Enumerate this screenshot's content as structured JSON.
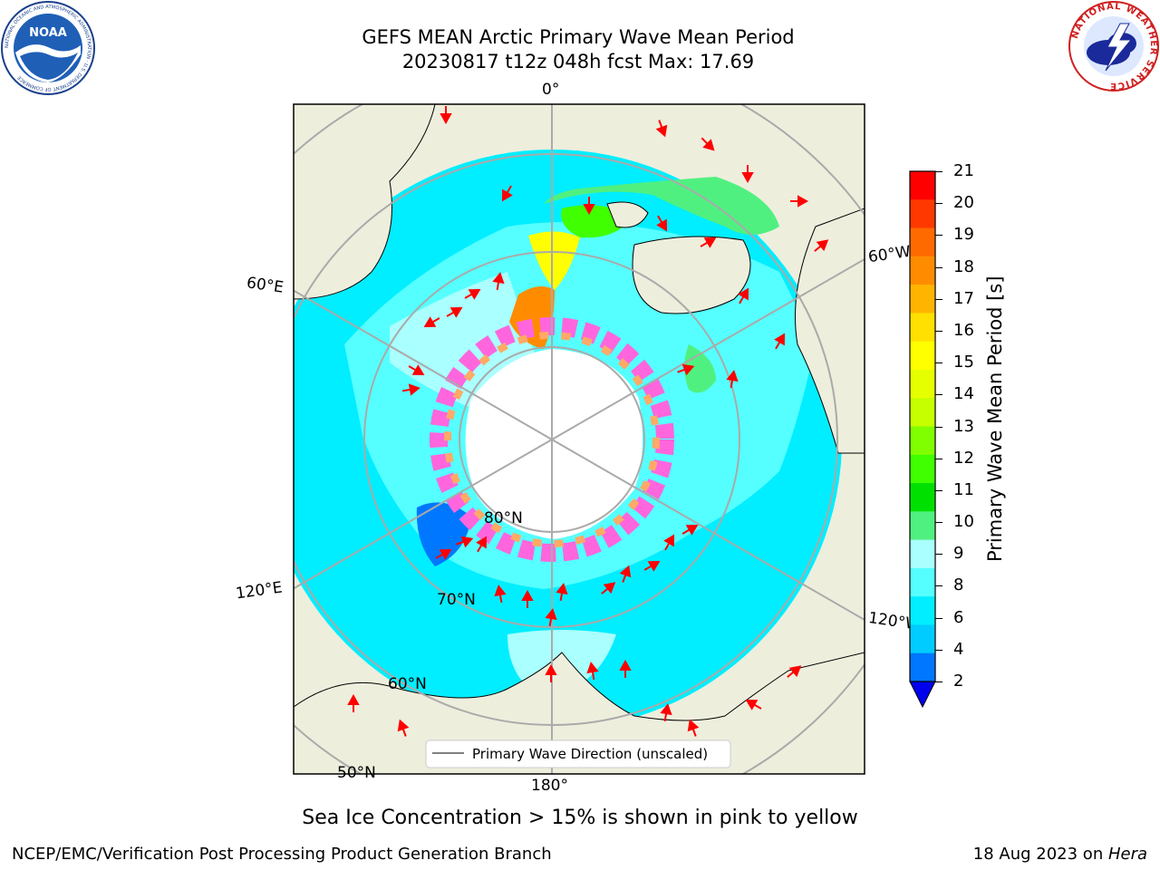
{
  "header": {
    "title_line1": "GEFS MEAN Arctic Primary Wave Mean Period",
    "title_line2": "20230817 t12z 048h fcst   Max: 17.69"
  },
  "map": {
    "lat_labels": [
      "80°N",
      "70°N",
      "60°N",
      "50°N"
    ],
    "lon_labels": [
      "0°",
      "60°W",
      "120°W",
      "180°",
      "120°E",
      "60°E"
    ],
    "legend_label": "Primary Wave Direction (unscaled)",
    "colors": {
      "land": "#eeeedd",
      "ice": "#ffffff",
      "grid": "#aaaaaa",
      "arrow": "#ff0000"
    }
  },
  "colorbar": {
    "title": "Primary Wave Mean Period [s]",
    "ticks": [
      "21",
      "20",
      "19",
      "18",
      "17",
      "16",
      "15",
      "14",
      "13",
      "12",
      "11",
      "10",
      "9",
      "8",
      "6",
      "4",
      "2"
    ],
    "colors": [
      "#ff0000",
      "#ff3800",
      "#ff6a00",
      "#ff8c00",
      "#ffb400",
      "#ffe000",
      "#ffff00",
      "#e6ff00",
      "#c6ff00",
      "#80ff00",
      "#40ff00",
      "#00e000",
      "#50f080",
      "#aaffff",
      "#55ffff",
      "#00eeff",
      "#00ccff",
      "#0077ff"
    ],
    "extend_color": "#0000ee"
  },
  "notes": {
    "ice": "Sea Ice Concentration > 15% is shown in pink to yellow"
  },
  "footer": {
    "left": "NCEP/EMC/Verification Post Processing Product Generation Branch",
    "right_date": "18 Aug 2023 on ",
    "right_host": "Hera"
  },
  "logos": {
    "noaa": "NOAA",
    "noaa_ring": "NATIONAL OCEANIC AND ATMOSPHERIC ADMINISTRATION · U.S. DEPARTMENT OF COMMERCE",
    "nws_ring": "NATIONAL WEATHER SERVICE"
  }
}
